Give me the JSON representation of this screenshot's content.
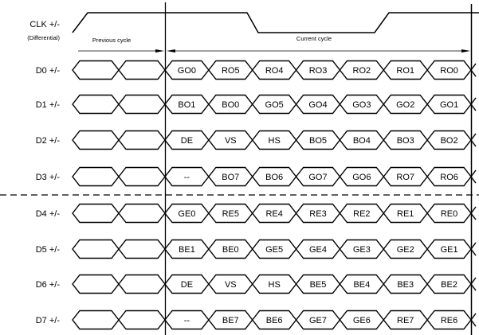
{
  "clock": {
    "label": "CLK +/-",
    "sublabel": "(Differential)"
  },
  "cycles": {
    "previous": "Previous cycle",
    "current": "Current cycle"
  },
  "rows": [
    {
      "label": "D0 +/-",
      "values": [
        "GO0",
        "RO5",
        "RO4",
        "RO3",
        "RO2",
        "RO1",
        "RO0"
      ]
    },
    {
      "label": "D1 +/-",
      "values": [
        "BO1",
        "BO0",
        "GO5",
        "GO4",
        "GO3",
        "GO2",
        "GO1"
      ]
    },
    {
      "label": "D2 +/-",
      "values": [
        "DE",
        "VS",
        "HS",
        "BO5",
        "BO4",
        "BO3",
        "BO2"
      ]
    },
    {
      "label": "D3 +/-",
      "values": [
        "--",
        "BO7",
        "BO6",
        "GO7",
        "GO6",
        "RO7",
        "RO6"
      ]
    },
    {
      "label": "D4 +/-",
      "values": [
        "GE0",
        "RE5",
        "RE4",
        "RE3",
        "RE2",
        "RE1",
        "RE0"
      ]
    },
    {
      "label": "D5 +/-",
      "values": [
        "BE1",
        "BE0",
        "GE5",
        "GE4",
        "GE3",
        "GE2",
        "GE1"
      ]
    },
    {
      "label": "D6 +/-",
      "values": [
        "DE",
        "VS",
        "HS",
        "BE5",
        "BE4",
        "BE3",
        "BE2"
      ]
    },
    {
      "label": "D7 +/-",
      "values": [
        "--",
        "BE7",
        "BE6",
        "GE7",
        "GE6",
        "RE7",
        "RE6"
      ]
    }
  ],
  "colors": {
    "line": "#000000",
    "background": "#ffffff"
  }
}
